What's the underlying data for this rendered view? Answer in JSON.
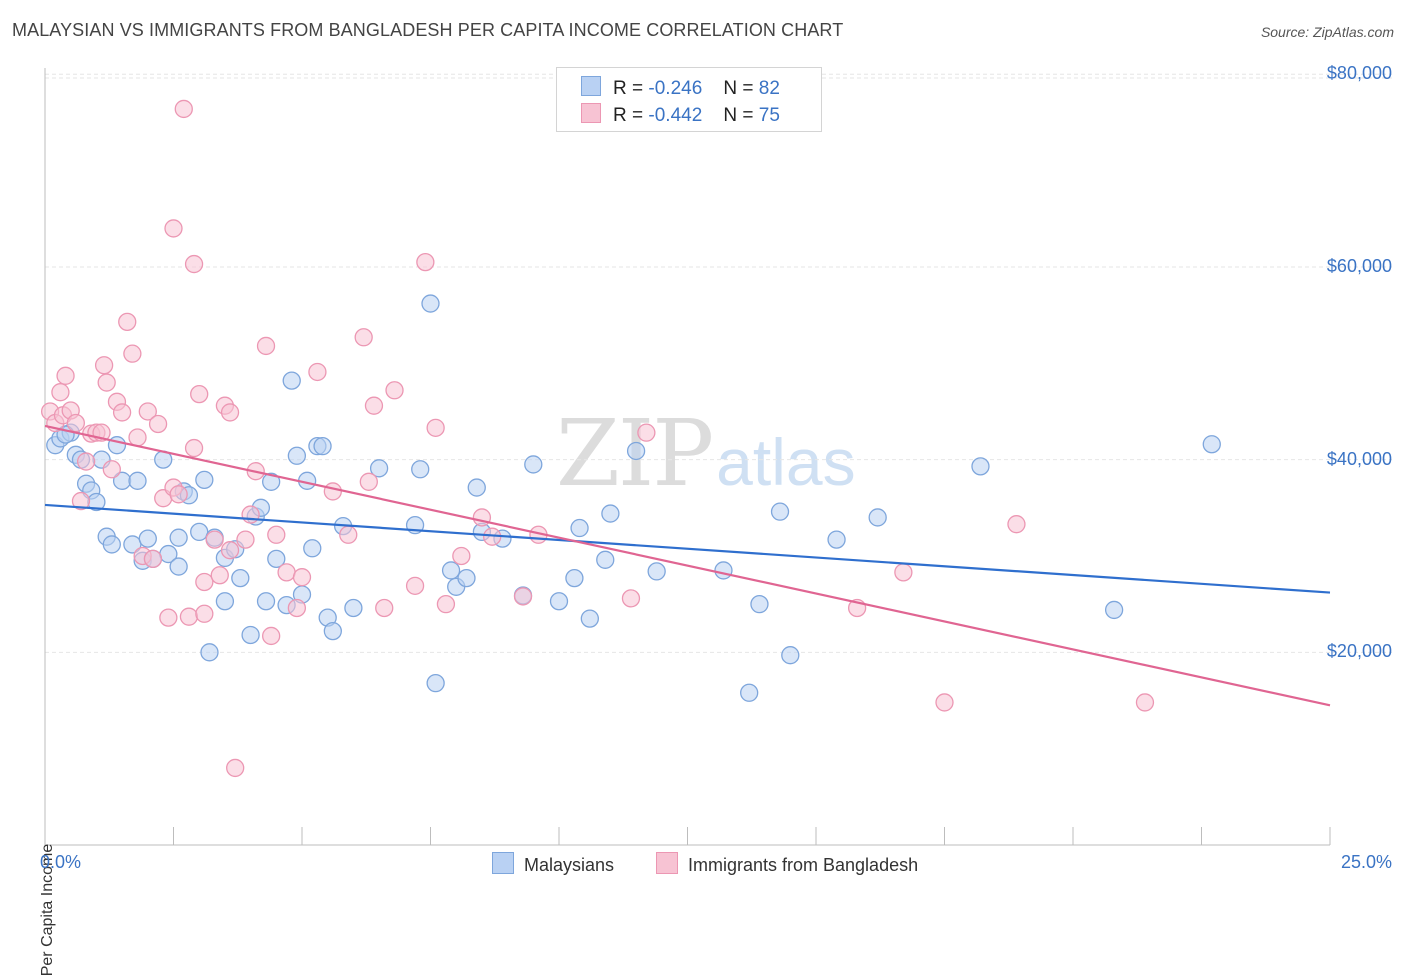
{
  "header": {
    "title": "MALAYSIAN VS IMMIGRANTS FROM BANGLADESH PER CAPITA INCOME CORRELATION CHART",
    "source": "Source: ZipAtlas.com"
  },
  "stats": {
    "r_label": "R =",
    "n_label": "N =",
    "rows": [
      {
        "r": "-0.246",
        "n": "82"
      },
      {
        "r": "-0.442",
        "n": "75"
      }
    ]
  },
  "watermark": {
    "zip": "ZIP",
    "atlas": "atlas"
  },
  "colors": {
    "blue_fill": "#b9d1f3",
    "blue_stroke": "#7ea6dc",
    "blue_line": "#2f6fce",
    "pink_fill": "#f7c3d3",
    "pink_stroke": "#ec97b3",
    "pink_line": "#e06592",
    "tick_text": "#3a73c4",
    "grid": "#e6e6e6"
  },
  "chart_data": {
    "type": "scatter",
    "title": "MALAYSIAN VS IMMIGRANTS FROM BANGLADESH PER CAPITA INCOME CORRELATION CHART",
    "xlabel": "",
    "ylabel": "Per Capita Income",
    "xlim": [
      0,
      25
    ],
    "ylim": [
      0,
      82000
    ],
    "x_tick_labels": [
      "0.0%",
      "25.0%"
    ],
    "y_ticks": [
      20000,
      40000,
      60000,
      80000
    ],
    "y_tick_labels": [
      "$20,000",
      "$40,000",
      "$60,000",
      "$80,000"
    ],
    "grid": true,
    "legend": "bottom",
    "series": [
      {
        "name": "Malaysians",
        "color": "blue",
        "R": -0.246,
        "N": 82,
        "trend": [
          [
            0,
            35300
          ],
          [
            25,
            26200
          ]
        ],
        "points": [
          [
            0.2,
            41500
          ],
          [
            0.3,
            42200
          ],
          [
            0.5,
            42800
          ],
          [
            0.6,
            40500
          ],
          [
            0.7,
            40000
          ],
          [
            0.8,
            37500
          ],
          [
            0.9,
            36800
          ],
          [
            1.0,
            35600
          ],
          [
            1.1,
            40000
          ],
          [
            1.2,
            32000
          ],
          [
            1.4,
            41500
          ],
          [
            1.5,
            37800
          ],
          [
            1.7,
            31200
          ],
          [
            1.8,
            37800
          ],
          [
            1.9,
            29500
          ],
          [
            2.0,
            31800
          ],
          [
            2.1,
            29700
          ],
          [
            2.3,
            40000
          ],
          [
            2.4,
            30200
          ],
          [
            2.6,
            31900
          ],
          [
            2.6,
            28900
          ],
          [
            2.7,
            36700
          ],
          [
            2.8,
            36300
          ],
          [
            3.0,
            32500
          ],
          [
            3.1,
            37900
          ],
          [
            3.2,
            20000
          ],
          [
            3.3,
            31900
          ],
          [
            3.5,
            25300
          ],
          [
            3.5,
            29800
          ],
          [
            3.7,
            30700
          ],
          [
            3.8,
            27700
          ],
          [
            4.0,
            21800
          ],
          [
            4.1,
            34100
          ],
          [
            4.2,
            35000
          ],
          [
            4.3,
            25300
          ],
          [
            4.4,
            37700
          ],
          [
            4.5,
            29700
          ],
          [
            4.7,
            24900
          ],
          [
            4.8,
            48200
          ],
          [
            4.9,
            40400
          ],
          [
            5.0,
            26000
          ],
          [
            5.1,
            37800
          ],
          [
            5.2,
            30800
          ],
          [
            5.3,
            41400
          ],
          [
            5.4,
            41400
          ],
          [
            5.5,
            23600
          ],
          [
            5.6,
            22200
          ],
          [
            5.8,
            33100
          ],
          [
            6.0,
            24600
          ],
          [
            6.5,
            39100
          ],
          [
            7.2,
            33200
          ],
          [
            7.3,
            39000
          ],
          [
            7.5,
            56200
          ],
          [
            7.6,
            16800
          ],
          [
            7.9,
            28500
          ],
          [
            8.0,
            26800
          ],
          [
            8.2,
            27700
          ],
          [
            8.4,
            37100
          ],
          [
            8.5,
            32500
          ],
          [
            8.9,
            31800
          ],
          [
            9.3,
            25900
          ],
          [
            9.5,
            39500
          ],
          [
            10.0,
            25300
          ],
          [
            10.3,
            27700
          ],
          [
            10.4,
            32900
          ],
          [
            10.6,
            23500
          ],
          [
            10.9,
            29600
          ],
          [
            11.0,
            34400
          ],
          [
            11.5,
            40900
          ],
          [
            11.9,
            28400
          ],
          [
            13.2,
            28500
          ],
          [
            13.7,
            15800
          ],
          [
            13.9,
            25000
          ],
          [
            14.3,
            34600
          ],
          [
            14.5,
            19700
          ],
          [
            15.4,
            31700
          ],
          [
            16.2,
            34000
          ],
          [
            18.2,
            39300
          ],
          [
            20.8,
            24400
          ],
          [
            22.7,
            41600
          ],
          [
            0.4,
            42600
          ],
          [
            1.3,
            31200
          ]
        ]
      },
      {
        "name": "Immigrants from Bangladesh",
        "color": "pink",
        "R": -0.442,
        "N": 75,
        "trend": [
          [
            0,
            43500
          ],
          [
            25,
            14500
          ]
        ],
        "points": [
          [
            0.1,
            45000
          ],
          [
            0.2,
            43800
          ],
          [
            0.3,
            47000
          ],
          [
            0.35,
            44600
          ],
          [
            0.4,
            48700
          ],
          [
            0.5,
            45100
          ],
          [
            0.6,
            43800
          ],
          [
            0.7,
            35700
          ],
          [
            0.8,
            39800
          ],
          [
            0.9,
            42700
          ],
          [
            1.0,
            42800
          ],
          [
            1.1,
            42800
          ],
          [
            1.15,
            49800
          ],
          [
            1.2,
            48000
          ],
          [
            1.3,
            39000
          ],
          [
            1.4,
            46000
          ],
          [
            1.5,
            44900
          ],
          [
            1.6,
            54300
          ],
          [
            1.7,
            51000
          ],
          [
            1.8,
            42300
          ],
          [
            1.9,
            30000
          ],
          [
            2.0,
            45000
          ],
          [
            2.1,
            29700
          ],
          [
            2.2,
            43700
          ],
          [
            2.3,
            36000
          ],
          [
            2.4,
            23600
          ],
          [
            2.5,
            37100
          ],
          [
            2.5,
            64000
          ],
          [
            2.6,
            36400
          ],
          [
            2.7,
            76400
          ],
          [
            2.8,
            23700
          ],
          [
            2.9,
            41200
          ],
          [
            2.9,
            60300
          ],
          [
            3.0,
            46800
          ],
          [
            3.1,
            24000
          ],
          [
            3.1,
            27300
          ],
          [
            3.3,
            31700
          ],
          [
            3.4,
            28000
          ],
          [
            3.5,
            45600
          ],
          [
            3.6,
            44900
          ],
          [
            3.6,
            30600
          ],
          [
            3.7,
            8000
          ],
          [
            3.9,
            31700
          ],
          [
            4.0,
            34300
          ],
          [
            4.1,
            38800
          ],
          [
            4.3,
            51800
          ],
          [
            4.4,
            21700
          ],
          [
            4.5,
            32200
          ],
          [
            4.7,
            28300
          ],
          [
            4.9,
            24600
          ],
          [
            5.0,
            27800
          ],
          [
            5.3,
            49100
          ],
          [
            5.6,
            36700
          ],
          [
            5.9,
            32200
          ],
          [
            6.2,
            52700
          ],
          [
            6.3,
            37700
          ],
          [
            6.4,
            45600
          ],
          [
            6.6,
            24600
          ],
          [
            6.8,
            47200
          ],
          [
            7.2,
            26900
          ],
          [
            7.4,
            60500
          ],
          [
            7.6,
            43300
          ],
          [
            7.8,
            25000
          ],
          [
            8.1,
            30000
          ],
          [
            8.5,
            34000
          ],
          [
            8.7,
            32000
          ],
          [
            9.3,
            25800
          ],
          [
            9.6,
            32200
          ],
          [
            11.4,
            25600
          ],
          [
            11.7,
            42800
          ],
          [
            15.8,
            24600
          ],
          [
            16.7,
            28300
          ],
          [
            17.5,
            14800
          ],
          [
            18.9,
            33300
          ],
          [
            21.4,
            14800
          ]
        ]
      }
    ]
  },
  "legend": {
    "items": [
      "Malaysians",
      "Immigrants from Bangladesh"
    ]
  }
}
